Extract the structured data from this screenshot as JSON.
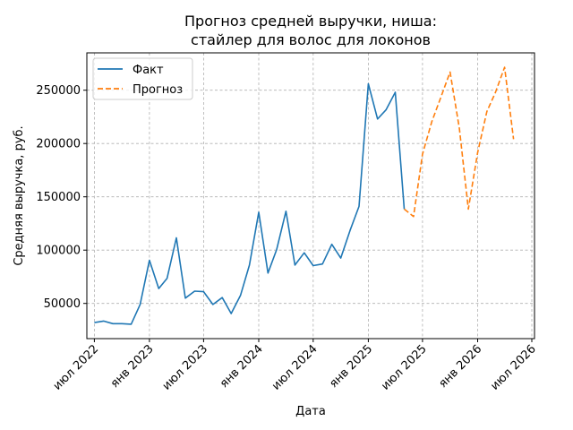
{
  "chart_data": {
    "type": "line",
    "title_line1": "Прогноз средней выручки, ниша:",
    "title_line2": "стайлер для волос для локонов",
    "xlabel": "Дата",
    "ylabel": "Средняя выручка, руб.",
    "ylim": [
      17000,
      285000
    ],
    "yticks": [
      50000,
      100000,
      150000,
      200000,
      250000
    ],
    "xlim": [
      "2022-06-06",
      "2026-07-10"
    ],
    "xticks": [
      {
        "date": "2022-07-01",
        "label": "июл 2022"
      },
      {
        "date": "2023-01-01",
        "label": "янв 2023"
      },
      {
        "date": "2023-07-01",
        "label": "июл 2023"
      },
      {
        "date": "2024-01-01",
        "label": "янв 2024"
      },
      {
        "date": "2024-07-01",
        "label": "июл 2024"
      },
      {
        "date": "2025-01-01",
        "label": "янв 2025"
      },
      {
        "date": "2025-07-01",
        "label": "июл 2025"
      },
      {
        "date": "2026-01-01",
        "label": "янв 2026"
      },
      {
        "date": "2026-07-01",
        "label": "июл 2026"
      }
    ],
    "grid": true,
    "legend_position": "top-left",
    "series": [
      {
        "name": "Факт",
        "color": "#1f77b4",
        "style": "solid",
        "points": [
          {
            "x": "2022-07-01",
            "y": 32000
          },
          {
            "x": "2022-08-01",
            "y": 33500
          },
          {
            "x": "2022-09-01",
            "y": 31000
          },
          {
            "x": "2022-10-01",
            "y": 31000
          },
          {
            "x": "2022-11-01",
            "y": 30500
          },
          {
            "x": "2022-12-01",
            "y": 49000
          },
          {
            "x": "2023-01-01",
            "y": 90500
          },
          {
            "x": "2023-02-01",
            "y": 64000
          },
          {
            "x": "2023-03-01",
            "y": 73500
          },
          {
            "x": "2023-04-01",
            "y": 111500
          },
          {
            "x": "2023-05-01",
            "y": 55000
          },
          {
            "x": "2023-06-01",
            "y": 61500
          },
          {
            "x": "2023-07-01",
            "y": 61000
          },
          {
            "x": "2023-08-01",
            "y": 49000
          },
          {
            "x": "2023-09-01",
            "y": 55500
          },
          {
            "x": "2023-10-01",
            "y": 40500
          },
          {
            "x": "2023-11-01",
            "y": 57500
          },
          {
            "x": "2023-12-01",
            "y": 86000
          },
          {
            "x": "2024-01-01",
            "y": 135500
          },
          {
            "x": "2024-02-01",
            "y": 78500
          },
          {
            "x": "2024-03-01",
            "y": 100500
          },
          {
            "x": "2024-04-01",
            "y": 136500
          },
          {
            "x": "2024-05-01",
            "y": 86000
          },
          {
            "x": "2024-06-01",
            "y": 97500
          },
          {
            "x": "2024-07-01",
            "y": 85500
          },
          {
            "x": "2024-08-01",
            "y": 87000
          },
          {
            "x": "2024-09-01",
            "y": 105500
          },
          {
            "x": "2024-10-01",
            "y": 92500
          },
          {
            "x": "2024-11-01",
            "y": 118500
          },
          {
            "x": "2024-12-01",
            "y": 141000
          },
          {
            "x": "2025-01-01",
            "y": 256000
          },
          {
            "x": "2025-02-01",
            "y": 223000
          },
          {
            "x": "2025-03-01",
            "y": 231500
          },
          {
            "x": "2025-04-01",
            "y": 248000
          },
          {
            "x": "2025-05-01",
            "y": 138500
          }
        ]
      },
      {
        "name": "Прогноз",
        "color": "#ff7f0e",
        "style": "dashed",
        "points": [
          {
            "x": "2025-05-01",
            "y": 138500
          },
          {
            "x": "2025-06-01",
            "y": 131500
          },
          {
            "x": "2025-07-01",
            "y": 190000
          },
          {
            "x": "2025-08-01",
            "y": 220500
          },
          {
            "x": "2025-09-01",
            "y": 244000
          },
          {
            "x": "2025-10-01",
            "y": 267000
          },
          {
            "x": "2025-11-01",
            "y": 214000
          },
          {
            "x": "2025-12-01",
            "y": 138500
          },
          {
            "x": "2026-01-01",
            "y": 191500
          },
          {
            "x": "2026-02-01",
            "y": 230000
          },
          {
            "x": "2026-03-01",
            "y": 247500
          },
          {
            "x": "2026-04-01",
            "y": 271500
          },
          {
            "x": "2026-05-01",
            "y": 204000
          }
        ]
      }
    ]
  }
}
